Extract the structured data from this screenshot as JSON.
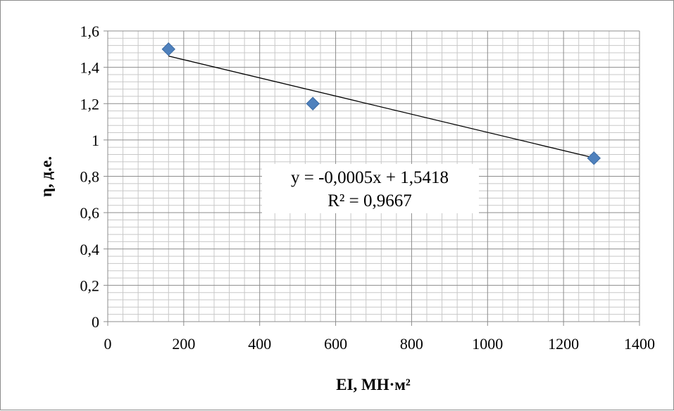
{
  "chart_data": {
    "type": "scatter",
    "xlabel": "EI, МН·м²",
    "ylabel": "η, д.е.",
    "xlim": [
      0,
      1400
    ],
    "ylim": [
      0,
      1.6
    ],
    "x_ticks": [
      "0",
      "200",
      "400",
      "600",
      "800",
      "1000",
      "1200",
      "1400"
    ],
    "y_ticks": [
      "0",
      "0,2",
      "0,4",
      "0,6",
      "0,8",
      "1",
      "1,2",
      "1,4",
      "1,6"
    ],
    "grid": true,
    "legend": "none",
    "series": [
      {
        "marker": "diamond",
        "color": "#4f81bd",
        "points": [
          {
            "x": 160,
            "y": 1.5
          },
          {
            "x": 540,
            "y": 1.2
          },
          {
            "x": 1280,
            "y": 0.9
          }
        ]
      }
    ],
    "trendline": {
      "type": "linear",
      "slope": -0.0005,
      "intercept": 1.5418,
      "color": "#000000",
      "equation_text": "y = -0,0005x + 1,5418",
      "r2_text": "R² = 0,9667"
    }
  }
}
